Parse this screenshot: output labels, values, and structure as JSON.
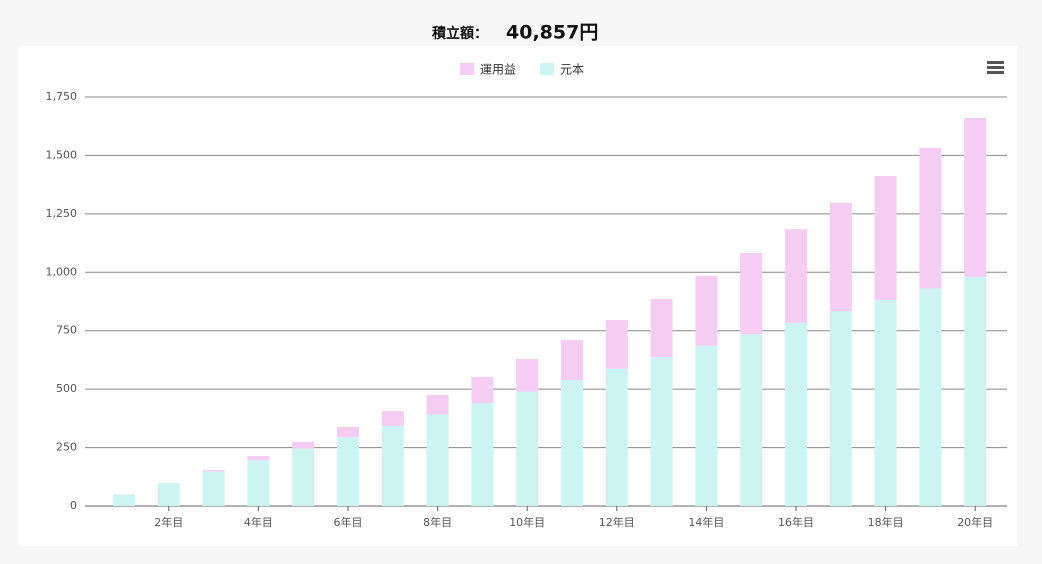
{
  "chart_data": {
    "type": "stacked-bar",
    "title": "積立額：",
    "total_label": "40,857円",
    "categories": [
      null,
      "2年目",
      null,
      "4年目",
      null,
      "6年目",
      null,
      "8年目",
      null,
      "10年目",
      null,
      "12年目",
      null,
      "14年目",
      null,
      "16年目",
      null,
      "18年目",
      null,
      "20年目"
    ],
    "series": [
      {
        "name": "運用益",
        "color": "#f5cdf2",
        "values": [
          0,
          0,
          7,
          18,
          29,
          44,
          63,
          83,
          111,
          139,
          171,
          208,
          249,
          298,
          348,
          401,
          464,
          530,
          601,
          680
        ]
      },
      {
        "name": "元本",
        "color": "#cdf3f2",
        "values": [
          49,
          98,
          147,
          196,
          245,
          294,
          343,
          392,
          441,
          490,
          539,
          588,
          637,
          686,
          735,
          784,
          833,
          882,
          931,
          980
        ]
      }
    ],
    "ylim": [
      0,
      1750
    ],
    "yticks": [
      0,
      250,
      500,
      750,
      {
        "value": 1000,
        "label": "1,000"
      },
      {
        "value": 1250,
        "label": "1,250"
      },
      {
        "value": 1500,
        "label": "1,500"
      },
      {
        "value": 1750,
        "label": "1,750"
      }
    ],
    "grid": true,
    "legend": "top"
  }
}
